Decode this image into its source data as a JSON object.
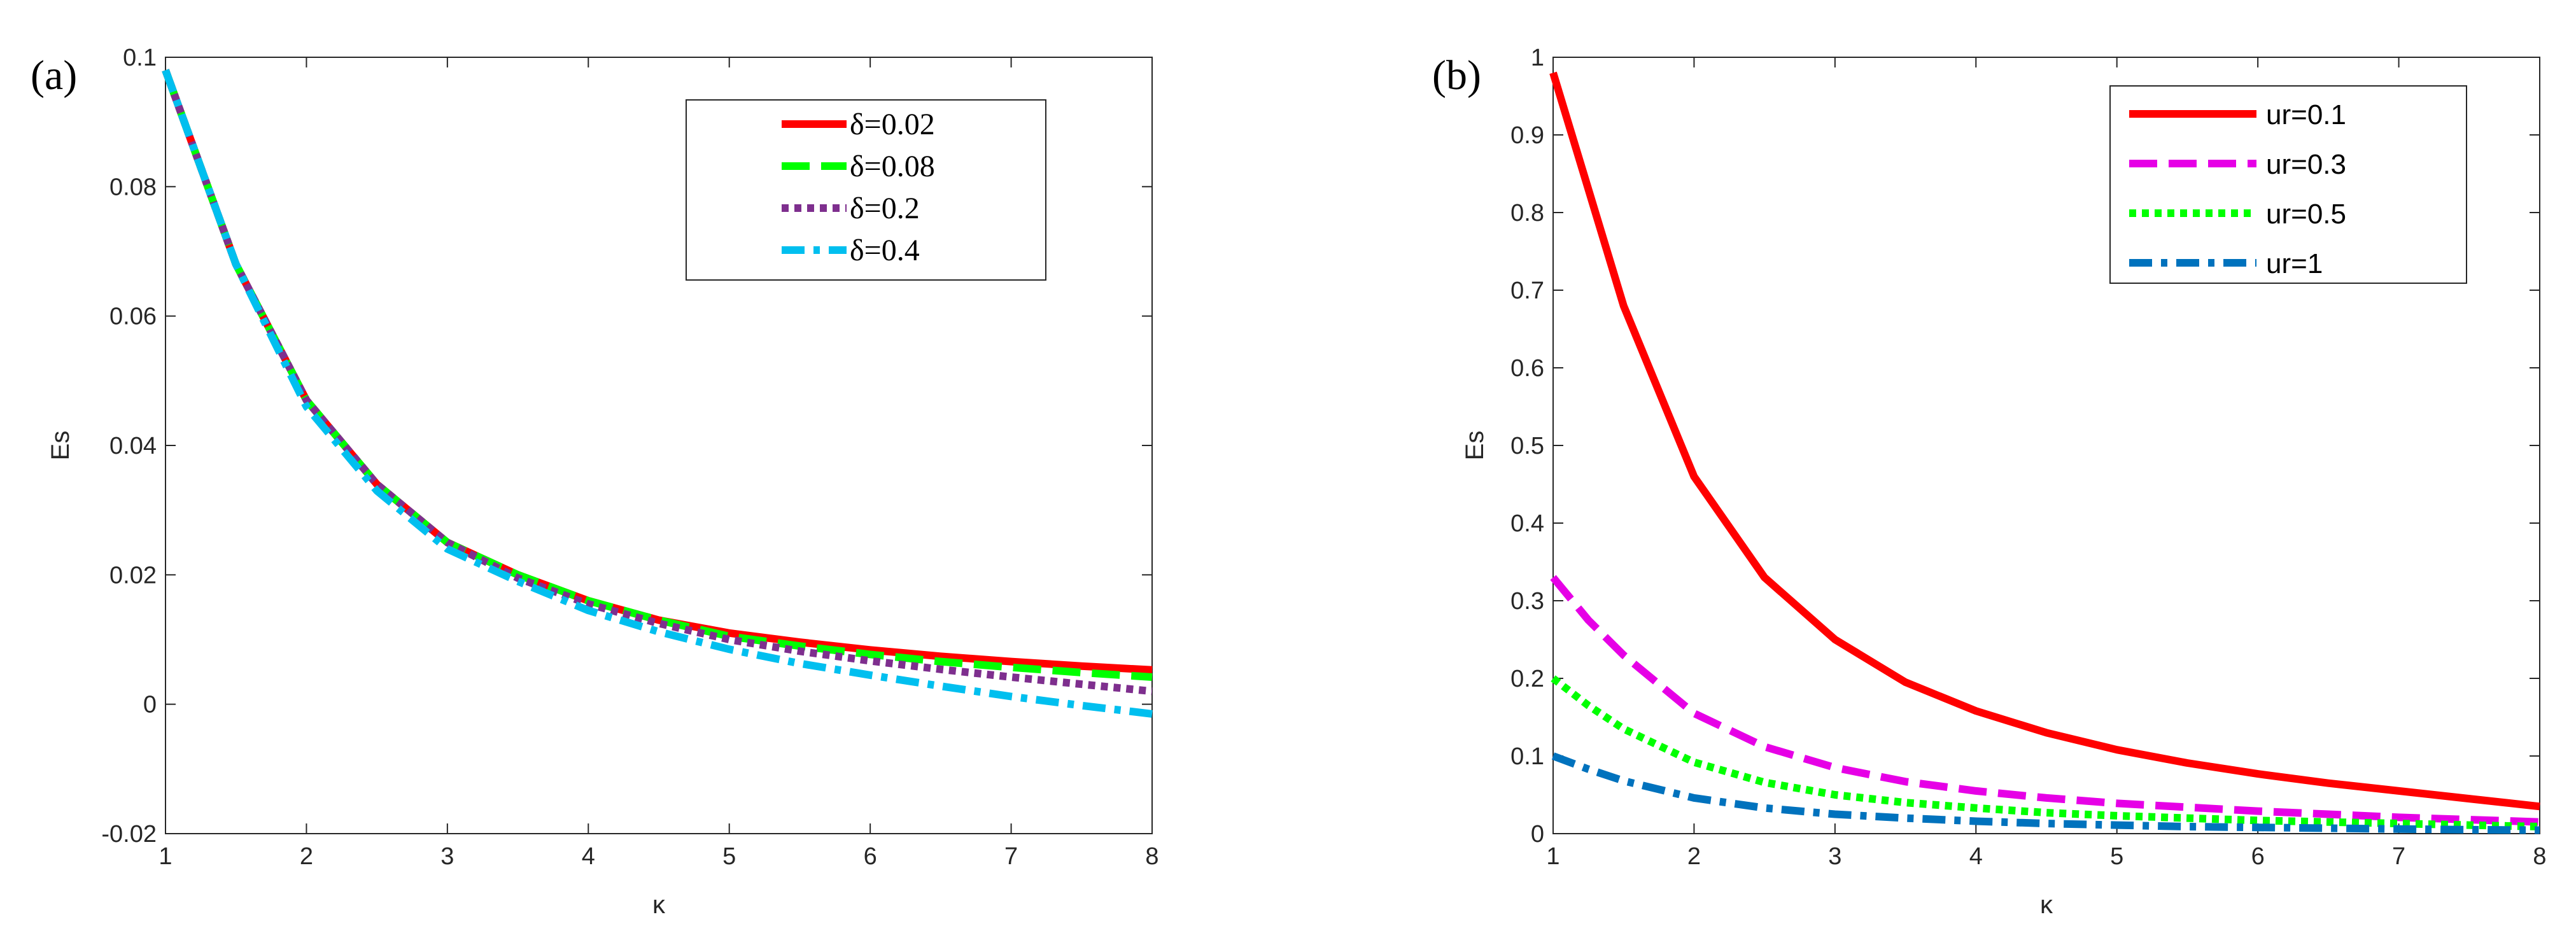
{
  "chart_data": [
    {
      "type": "line",
      "panel_label": "(a)",
      "xlabel": "κ",
      "ylabel": "Es",
      "xlim": [
        1,
        8
      ],
      "ylim": [
        -0.02,
        0.1
      ],
      "xticks": [
        1,
        2,
        3,
        4,
        5,
        6,
        7,
        8
      ],
      "yticks": [
        -0.02,
        0,
        0.02,
        0.04,
        0.06,
        0.08,
        0.1
      ],
      "x_tick_labels": [
        "1",
        "2",
        "3",
        "4",
        "5",
        "6",
        "7",
        "8"
      ],
      "y_tick_labels": [
        "-0.02",
        "0",
        "0.02",
        "0.04",
        "0.06",
        "0.08",
        "0.1"
      ],
      "legend_position": "top-right",
      "grid": false,
      "x": [
        1,
        1.5,
        2,
        2.5,
        3,
        3.5,
        4,
        4.5,
        5,
        5.5,
        6,
        6.5,
        7,
        7.5,
        8
      ],
      "series": [
        {
          "name": "δ=0.02",
          "color": "#ff0000",
          "style": "solid",
          "values": [
            0.098,
            0.068,
            0.047,
            0.034,
            0.025,
            0.02,
            0.016,
            0.013,
            0.011,
            0.0096,
            0.0084,
            0.0074,
            0.0066,
            0.0059,
            0.0053
          ]
        },
        {
          "name": "δ=0.08",
          "color": "#00ff00",
          "style": "dashed",
          "values": [
            0.098,
            0.068,
            0.047,
            0.034,
            0.025,
            0.02,
            0.016,
            0.013,
            0.0105,
            0.009,
            0.0077,
            0.0066,
            0.0057,
            0.0049,
            0.0042
          ]
        },
        {
          "name": "δ=0.2",
          "color": "#7e2f8e",
          "style": "dotted",
          "values": [
            0.098,
            0.068,
            0.047,
            0.034,
            0.025,
            0.0195,
            0.0155,
            0.0125,
            0.01,
            0.0082,
            0.0067,
            0.0054,
            0.0042,
            0.0031,
            0.002
          ]
        },
        {
          "name": "δ=0.4",
          "color": "#00bfef",
          "style": "dashdot",
          "values": [
            0.098,
            0.068,
            0.046,
            0.033,
            0.024,
            0.019,
            0.0145,
            0.0112,
            0.0085,
            0.0063,
            0.0045,
            0.0028,
            0.0012,
            -0.0002,
            -0.0015
          ]
        }
      ]
    },
    {
      "type": "line",
      "panel_label": "(b)",
      "xlabel": "κ",
      "ylabel": "Es",
      "xlim": [
        1,
        8
      ],
      "ylim": [
        0,
        1
      ],
      "xticks": [
        1,
        2,
        3,
        4,
        5,
        6,
        7,
        8
      ],
      "yticks": [
        0,
        0.1,
        0.2,
        0.3,
        0.4,
        0.5,
        0.6,
        0.7,
        0.8,
        0.9,
        1
      ],
      "x_tick_labels": [
        "1",
        "2",
        "3",
        "4",
        "5",
        "6",
        "7",
        "8"
      ],
      "y_tick_labels": [
        "0",
        "0.1",
        "0.2",
        "0.3",
        "0.4",
        "0.5",
        "0.6",
        "0.7",
        "0.8",
        "0.9",
        "1"
      ],
      "legend_position": "top-right",
      "grid": false,
      "x": [
        1,
        1.25,
        1.5,
        2,
        2.5,
        3,
        3.5,
        4,
        4.5,
        5,
        5.5,
        6,
        6.5,
        7,
        7.5,
        8
      ],
      "series": [
        {
          "name": "ur=0.1",
          "color": "#ff0000",
          "style": "solid",
          "values": [
            0.98,
            0.83,
            0.68,
            0.46,
            0.33,
            0.25,
            0.195,
            0.158,
            0.13,
            0.108,
            0.091,
            0.077,
            0.065,
            0.055,
            0.045,
            0.035
          ]
        },
        {
          "name": "ur=0.3",
          "color": "#e600e6",
          "style": "dashed",
          "values": [
            0.33,
            0.275,
            0.23,
            0.155,
            0.112,
            0.085,
            0.067,
            0.055,
            0.046,
            0.039,
            0.034,
            0.029,
            0.025,
            0.021,
            0.018,
            0.015
          ]
        },
        {
          "name": "ur=0.5",
          "color": "#00ff00",
          "style": "dotted",
          "values": [
            0.2,
            0.165,
            0.135,
            0.092,
            0.066,
            0.05,
            0.04,
            0.033,
            0.027,
            0.023,
            0.02,
            0.017,
            0.015,
            0.013,
            0.011,
            0.009
          ]
        },
        {
          "name": "ur=1",
          "color": "#0072bd",
          "style": "dashdot",
          "values": [
            0.1,
            0.083,
            0.068,
            0.046,
            0.033,
            0.025,
            0.02,
            0.016,
            0.013,
            0.011,
            0.009,
            0.008,
            0.007,
            0.006,
            0.005,
            0.0045
          ]
        }
      ]
    }
  ]
}
